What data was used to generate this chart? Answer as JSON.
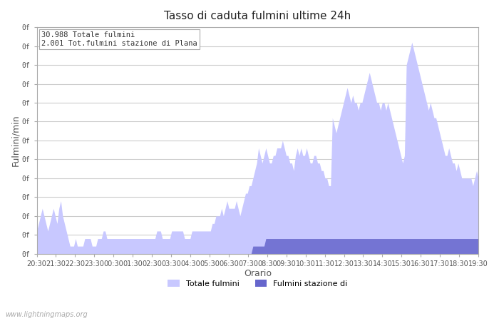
{
  "title": "Tasso di caduta fulmini ultime 24h",
  "xlabel": "Orario",
  "ylabel": "Fulmini/min",
  "legend_total": "30.988 Totale fulmini",
  "legend_station": "2.001 Tot.fulmini stazione di Plana",
  "legend_label_total": "Totale fulmini",
  "legend_label_station": "Fulmini stazione di",
  "watermark": "www.lightningmaps.org",
  "info_text": "30.988 Totale fulmini\n2.001 Tot.fulmini stazione di Plana",
  "color_total": "#c8c8ff",
  "color_station": "#6666cc",
  "background_color": "#ffffff",
  "grid_color": "#cccccc",
  "xtick_labels": [
    "20:30",
    "21:30",
    "22:30",
    "23:30",
    "00:30",
    "01:30",
    "02:30",
    "03:30",
    "04:30",
    "05:30",
    "06:30",
    "07:30",
    "08:30",
    "09:30",
    "10:30",
    "11:30",
    "12:30",
    "13:30",
    "14:30",
    "15:30",
    "16:30",
    "17:30",
    "18:30",
    "19:30"
  ],
  "n_points": 240,
  "total_values": [
    3,
    4,
    5,
    6,
    5,
    4,
    3,
    4,
    5,
    6,
    5,
    4,
    6,
    7,
    5,
    4,
    3,
    2,
    1,
    1,
    1,
    2,
    1,
    1,
    1,
    1,
    2,
    2,
    2,
    2,
    1,
    1,
    1,
    2,
    2,
    2,
    3,
    3,
    2,
    2,
    2,
    2,
    2,
    2,
    2,
    2,
    2,
    2,
    2,
    2,
    2,
    2,
    2,
    2,
    2,
    2,
    2,
    2,
    2,
    2,
    2,
    2,
    2,
    2,
    2,
    3,
    3,
    3,
    2,
    2,
    2,
    2,
    2,
    3,
    3,
    3,
    3,
    3,
    3,
    3,
    2,
    2,
    2,
    2,
    3,
    3,
    3,
    3,
    3,
    3,
    3,
    3,
    3,
    3,
    3,
    4,
    4,
    5,
    5,
    5,
    6,
    5,
    6,
    7,
    6,
    6,
    6,
    6,
    7,
    6,
    5,
    6,
    7,
    8,
    8,
    9,
    9,
    10,
    11,
    12,
    14,
    13,
    12,
    13,
    14,
    13,
    12,
    12,
    13,
    13,
    14,
    14,
    14,
    15,
    14,
    13,
    13,
    12,
    12,
    11,
    13,
    14,
    13,
    14,
    13,
    13,
    14,
    13,
    12,
    12,
    13,
    13,
    12,
    12,
    11,
    11,
    10,
    10,
    9,
    9,
    18,
    17,
    16,
    17,
    18,
    19,
    20,
    21,
    22,
    21,
    20,
    21,
    20,
    20,
    19,
    20,
    20,
    21,
    22,
    23,
    24,
    23,
    22,
    21,
    20,
    20,
    19,
    20,
    20,
    19,
    20,
    19,
    18,
    17,
    16,
    15,
    14,
    13,
    12,
    13,
    25,
    26,
    27,
    28,
    27,
    26,
    25,
    24,
    23,
    22,
    21,
    20,
    19,
    20,
    19,
    18,
    18,
    17,
    16,
    15,
    14,
    13,
    13,
    14,
    13,
    12,
    12,
    11,
    12,
    11,
    10,
    10,
    10,
    10,
    10,
    10,
    9,
    10,
    11,
    10
  ],
  "station_values": [
    0,
    0,
    0,
    0,
    0,
    0,
    0,
    0,
    0,
    0,
    0,
    0,
    0,
    0,
    0,
    0,
    0,
    0,
    0,
    0,
    0,
    0,
    0,
    0,
    0,
    0,
    0,
    0,
    0,
    0,
    0,
    0,
    0,
    0,
    0,
    0,
    0,
    0,
    0,
    0,
    0,
    0,
    0,
    0,
    0,
    0,
    0,
    0,
    0,
    0,
    0,
    0,
    0,
    0,
    0,
    0,
    0,
    0,
    0,
    0,
    0,
    0,
    0,
    0,
    0,
    0,
    0,
    0,
    0,
    0,
    0,
    0,
    0,
    0,
    0,
    0,
    0,
    0,
    0,
    0,
    0,
    0,
    0,
    0,
    0,
    0,
    0,
    0,
    0,
    0,
    0,
    0,
    0,
    0,
    0,
    0,
    0,
    0,
    0,
    0,
    0,
    0,
    0,
    0,
    0,
    0,
    0,
    0,
    0,
    0,
    0,
    0,
    0,
    0,
    0,
    0,
    0,
    1,
    1,
    1,
    1,
    1,
    1,
    1,
    2,
    2,
    2,
    2,
    2,
    2,
    2,
    2,
    2,
    2,
    2,
    2,
    2,
    2,
    2,
    2,
    2,
    2,
    2,
    2,
    2,
    2,
    2,
    2,
    2,
    2,
    2,
    2,
    2,
    2,
    2,
    2,
    2,
    2,
    2,
    2,
    2,
    2,
    2,
    2,
    2,
    2,
    2,
    2,
    2,
    2,
    2,
    2,
    2,
    2,
    2,
    2,
    2,
    2,
    2,
    2,
    2,
    2,
    2,
    2,
    2,
    2,
    2,
    2,
    2,
    2,
    2,
    2,
    2,
    2,
    2,
    2,
    2,
    2,
    2,
    2,
    2,
    2,
    2,
    2,
    2,
    2,
    2,
    2,
    2,
    2,
    2,
    2,
    2,
    2,
    2,
    2,
    2,
    2,
    2,
    2,
    2,
    2,
    2,
    2,
    2,
    2,
    2,
    2,
    2,
    2,
    2,
    2,
    2,
    2,
    2,
    2,
    2,
    2,
    2,
    2
  ]
}
